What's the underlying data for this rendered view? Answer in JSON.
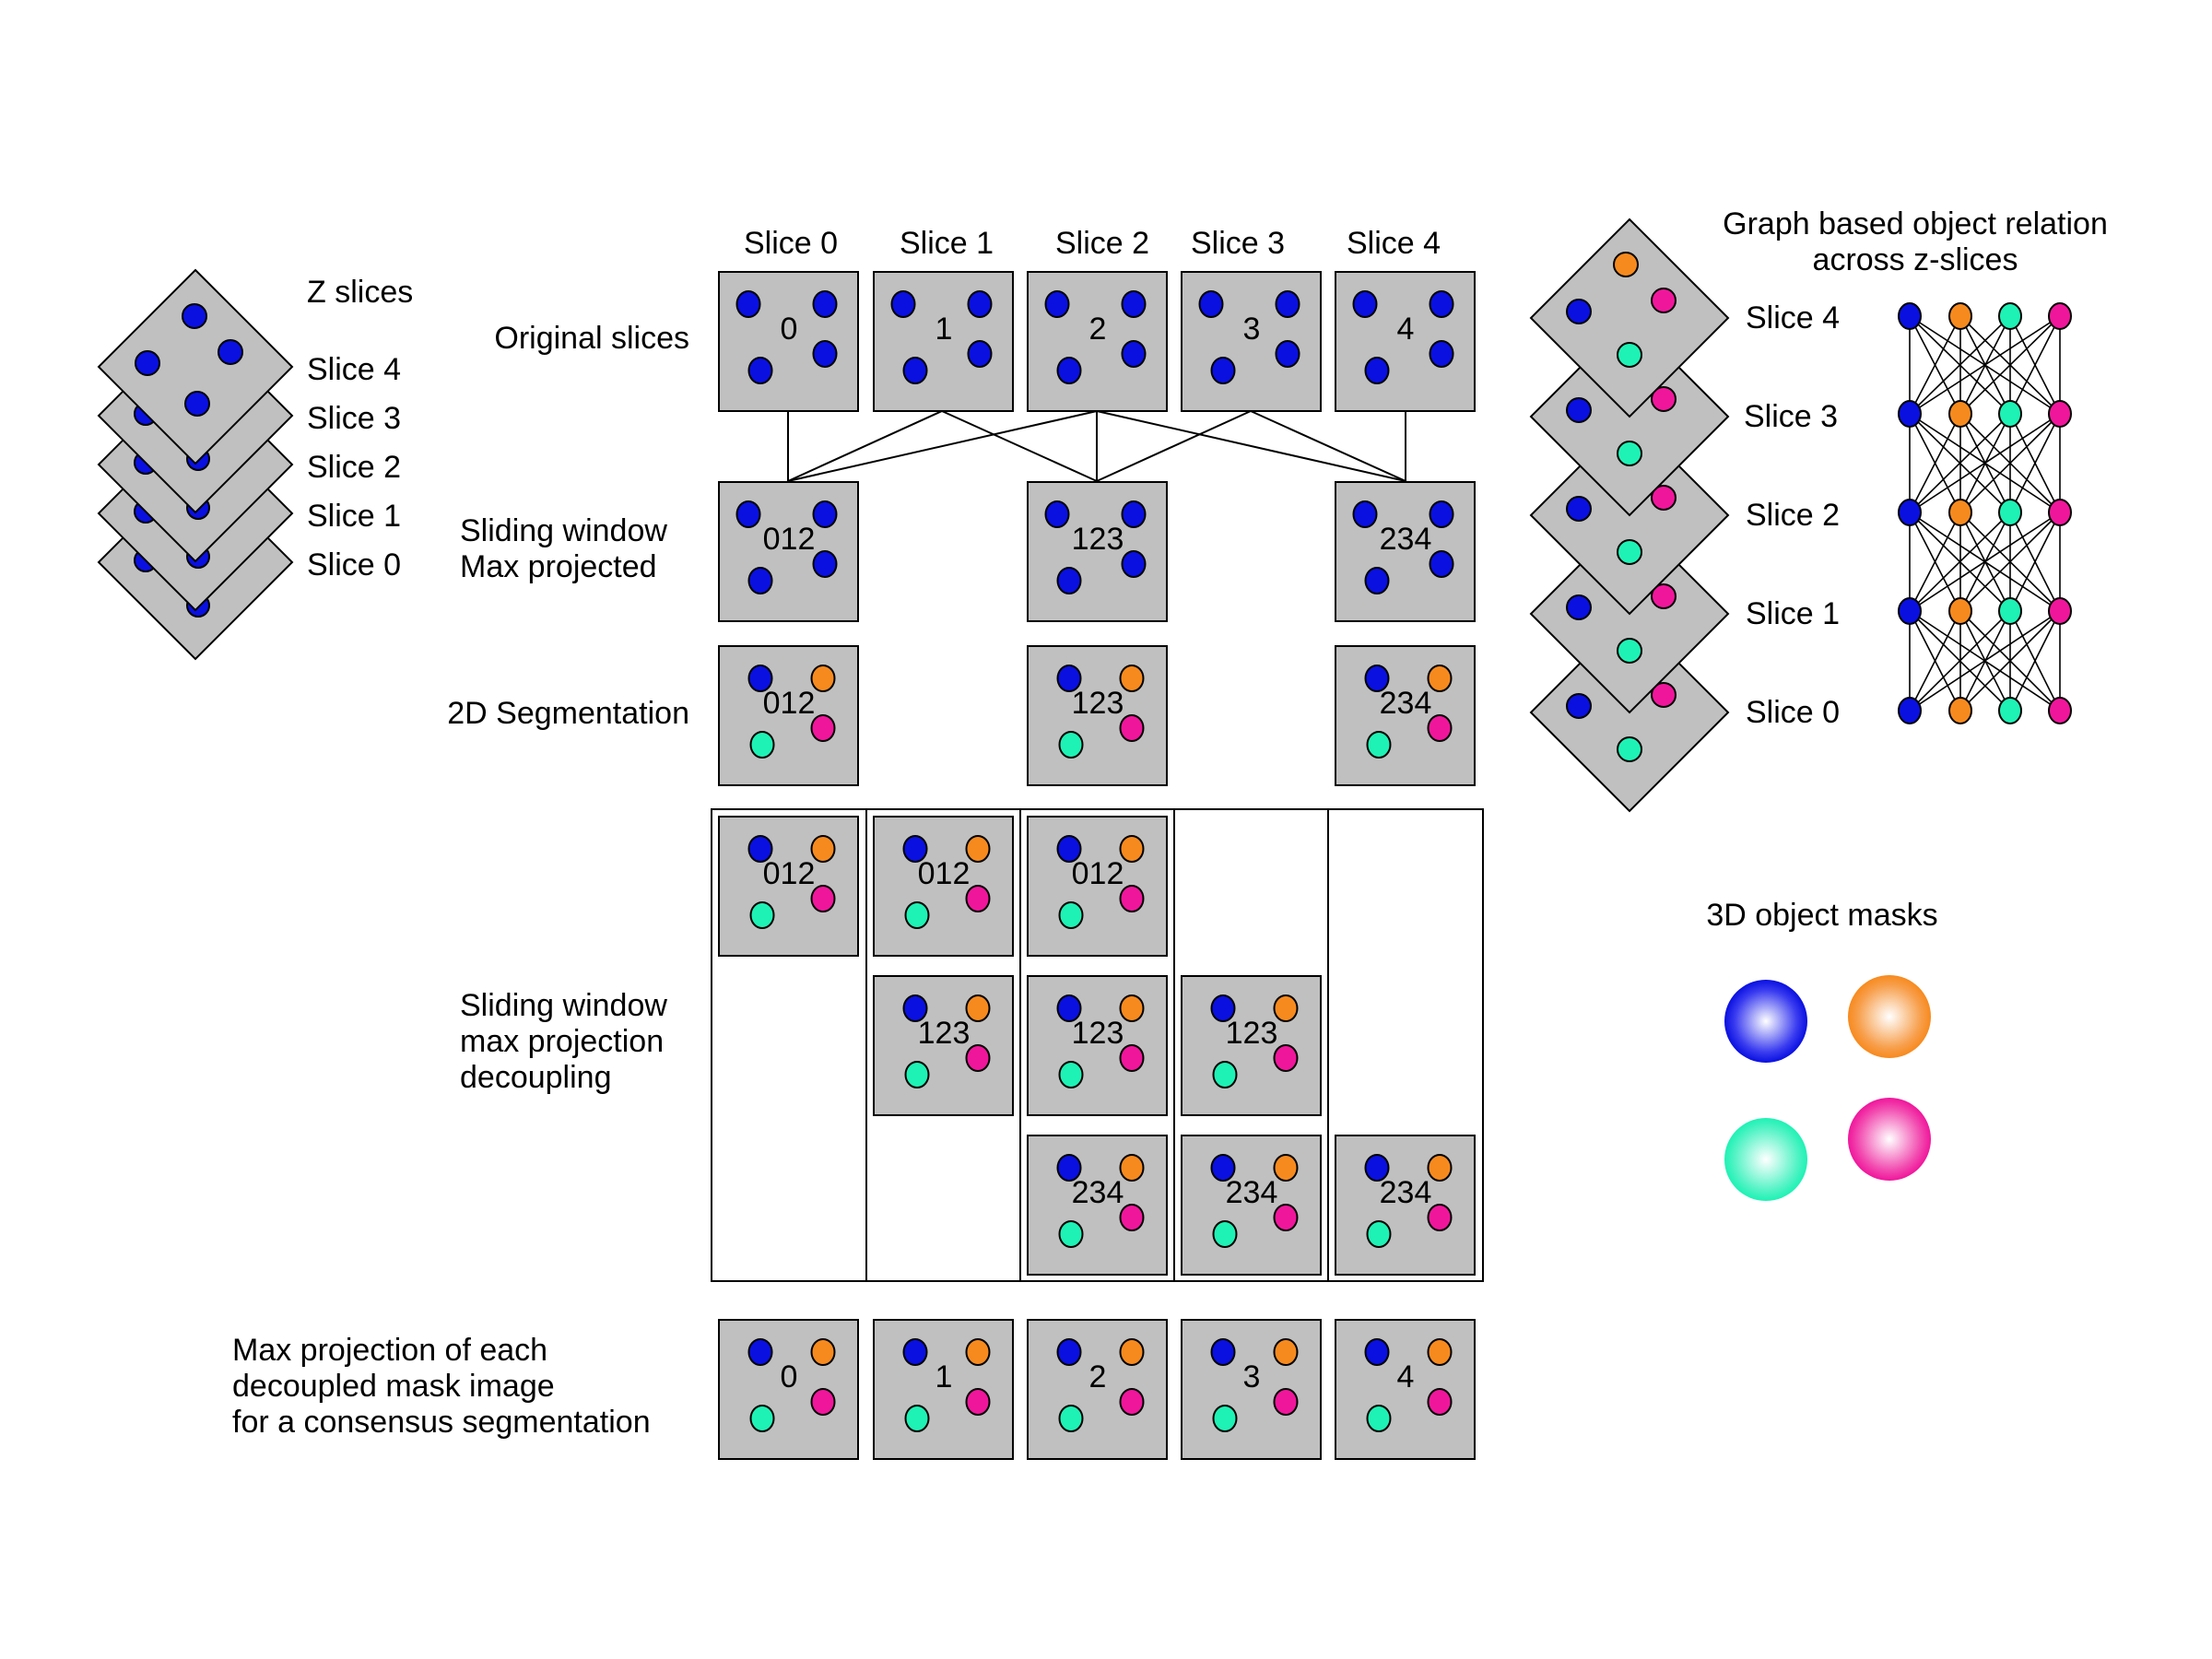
{
  "colors": {
    "panel_fill": "#c0c0c0",
    "blue": "#0a10e0",
    "orange": "#f78a1e",
    "green": "#1ef2b4",
    "magenta": "#f0169b",
    "line": "#000000"
  },
  "left_stack": {
    "title": "Z slices",
    "slice_labels": [
      "Slice 4",
      "Slice 3",
      "Slice 2",
      "Slice 1",
      "Slice 0"
    ]
  },
  "columns": {
    "headers": [
      "Slice 0",
      "Slice 1",
      "Slice 2",
      "Slice 3",
      "Slice 4"
    ]
  },
  "rows": {
    "original": {
      "label": "Original slices",
      "tiles": [
        "0",
        "1",
        "2",
        "3",
        "4"
      ]
    },
    "sliding_max": {
      "label_line1": "Sliding window",
      "label_line2": "Max projected",
      "tiles": [
        "012",
        "123",
        "234"
      ]
    },
    "segmentation": {
      "label": "2D Segmentation",
      "tiles": [
        "012",
        "123",
        "234"
      ]
    },
    "decoupling": {
      "label_line1": "Sliding window",
      "label_line2": "max projection",
      "label_line3": "decoupling",
      "tiles": [
        "012",
        "012",
        "012",
        "123",
        "123",
        "123",
        "234",
        "234",
        "234"
      ]
    },
    "consensus": {
      "label_line1": "Max projection of each",
      "label_line2": "decoupled mask image",
      "label_line3": "for a consensus segmentation",
      "tiles": [
        "0",
        "1",
        "2",
        "3",
        "4"
      ]
    }
  },
  "graph": {
    "title_line1": "Graph based object relation",
    "title_line2": "across z-slices",
    "slice_labels": [
      "Slice 4",
      "Slice 3",
      "Slice 2",
      "Slice 1",
      "Slice 0"
    ]
  },
  "masks": {
    "title": "3D object masks"
  }
}
